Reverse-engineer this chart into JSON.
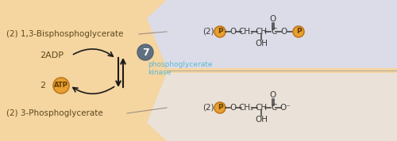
{
  "bg_left_color": "#F5D5A0",
  "bg_right_top_color": "#DCDCE8",
  "bg_right_bottom_color": "#EAE2D8",
  "text_color_dark": "#5C4A1E",
  "text_color_cyan": "#5BB8D4",
  "phospho_circle_color": "#E8A030",
  "phospho_circle_edge": "#C07820",
  "enzyme_circle_color": "#607080",
  "atp_circle_color": "#E8A030",
  "label_bisphospho": "(2) 1,3-Bisphosphoglycerate",
  "label_3phospho": "(2) 3-Phosphoglycerate",
  "label_2adp": "2ADP",
  "label_enzyme_num": "7",
  "label_enzyme_name1": "phosphoglycerate",
  "label_enzyme_name2": "kinase",
  "fig_width": 5.0,
  "fig_height": 1.78
}
